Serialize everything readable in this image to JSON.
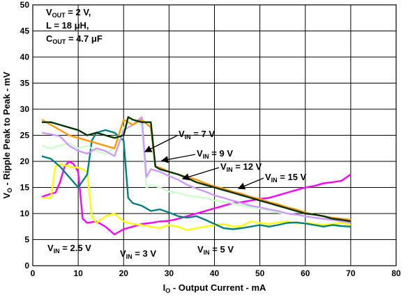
{
  "chart_data": {
    "type": "line",
    "xlabel": {
      "main": "I",
      "sub": "O",
      "rest": " - Output Current - mA"
    },
    "ylabel": {
      "main": "V",
      "sub": "O",
      "rest": " - Ripple Peak to Peak - mV"
    },
    "xlim": [
      0,
      80
    ],
    "ylim": [
      0,
      50
    ],
    "xticks": [
      "0",
      "10",
      "20",
      "30",
      "40",
      "50",
      "60",
      "70",
      "80"
    ],
    "yticks": [
      "0",
      "5",
      "10",
      "15",
      "20",
      "25",
      "30",
      "35",
      "40",
      "45",
      "50"
    ],
    "grid": true,
    "conditions": [
      {
        "main": "V",
        "sub": "OUT",
        "rest": " = 2 V,"
      },
      {
        "main": "L = 18 μH,",
        "sub": "",
        "rest": ""
      },
      {
        "main": "C",
        "sub": "OUT",
        "rest": " = 4.7 μF"
      }
    ],
    "series": [
      {
        "name": "V_IN = 2.5 V",
        "color": "#ff00ff",
        "label": {
          "main": "V",
          "sub": "IN",
          "rest": " = 2.5 V"
        },
        "x": [
          2,
          4,
          5,
          6,
          7,
          8,
          9,
          10,
          11,
          12,
          14,
          16,
          18,
          20,
          22,
          24,
          26,
          28,
          30,
          32,
          34,
          36,
          38,
          40,
          42,
          44,
          46,
          48,
          50,
          52,
          54,
          56,
          58,
          60,
          62,
          64,
          66,
          68,
          70
        ],
        "y": [
          13.2,
          13.8,
          14,
          16,
          19,
          20,
          19.5,
          18,
          9,
          8.2,
          8.5,
          7.5,
          6,
          7,
          7.5,
          8,
          8.2,
          8.5,
          8.6,
          9,
          9.5,
          10,
          10.5,
          11,
          11.5,
          12,
          12.2,
          12.5,
          12.8,
          13,
          13.5,
          14,
          14.5,
          15,
          15.3,
          15.8,
          16,
          16.3,
          17.5
        ]
      },
      {
        "name": "V_IN = 3 V",
        "color": "#ffff00",
        "label": {
          "main": "V",
          "sub": "IN",
          "rest": " = 3 V"
        },
        "x": [
          2,
          4,
          5,
          6,
          8,
          10,
          11,
          12,
          13,
          14,
          16,
          18,
          20,
          22,
          24,
          26,
          28,
          30,
          32,
          34,
          36,
          38,
          40,
          42,
          44,
          46,
          48,
          50,
          52,
          54,
          56,
          58,
          60,
          62,
          64,
          66,
          68,
          70
        ],
        "y": [
          13,
          13,
          19,
          19.5,
          19,
          18.8,
          18.5,
          18,
          9.5,
          8.2,
          9.5,
          10,
          8.5,
          8,
          7.8,
          7.5,
          7.2,
          7.8,
          7.5,
          6.8,
          7.2,
          7.5,
          7.8,
          8,
          7.5,
          7.6,
          8.5,
          8.2,
          8,
          8.3,
          8.5,
          8.1,
          8.2,
          8,
          7.8,
          8,
          8.2,
          7.8
        ]
      },
      {
        "name": "V_IN = 5 V",
        "color": "#008080",
        "label": {
          "main": "V",
          "sub": "IN",
          "rest": " = 5 V"
        },
        "x": [
          2,
          4,
          6,
          8,
          10,
          12,
          13,
          14,
          16,
          18,
          20,
          21,
          22,
          24,
          26,
          28,
          30,
          32,
          34,
          36,
          38,
          40,
          42,
          44,
          46,
          48,
          50,
          52,
          54,
          56,
          58,
          60,
          62,
          64,
          66,
          68,
          70
        ],
        "y": [
          21,
          20.5,
          19,
          17,
          15,
          17.5,
          24,
          25.5,
          26,
          25.5,
          24,
          13,
          12,
          11.5,
          10.5,
          10.8,
          10.2,
          9.5,
          9.2,
          9.5,
          8.8,
          8,
          7.2,
          7,
          7.2,
          7.5,
          7.8,
          7.5,
          7.8,
          8.2,
          8.3,
          8.1,
          7.8,
          7.5,
          7.8,
          7.6,
          7.5
        ]
      },
      {
        "name": "V_IN = 7 V",
        "color": "#ccffcc",
        "label": {
          "main": "V",
          "sub": "IN",
          "rest": " = 7 V"
        },
        "x": [
          2,
          4,
          6,
          8,
          10,
          12,
          14,
          16,
          18,
          20,
          22,
          24,
          25,
          26,
          28,
          30,
          32,
          34,
          36,
          38,
          40,
          42,
          44,
          46,
          48,
          50,
          52,
          54,
          56,
          58,
          60,
          62,
          64,
          66,
          68,
          70
        ],
        "y": [
          23,
          22.5,
          23,
          23.5,
          22.5,
          23,
          22,
          21.5,
          22.5,
          26.5,
          28,
          27,
          15,
          15.5,
          15,
          14.2,
          14,
          13.5,
          13.2,
          13,
          12.5,
          12.3,
          12,
          11.5,
          11.2,
          11,
          10.5,
          10.2,
          10,
          9.8,
          9.5,
          9.3,
          9,
          8.8,
          8.5,
          8.4
        ]
      },
      {
        "name": "V_IN = 9 V",
        "color": "#cc99ff",
        "label": {
          "main": "V",
          "sub": "IN",
          "rest": " = 9 V"
        },
        "x": [
          2,
          4,
          6,
          8,
          10,
          12,
          14,
          16,
          18,
          20,
          22,
          24,
          25,
          26,
          28,
          30,
          32,
          34,
          36,
          38,
          40,
          42,
          44,
          46,
          48,
          50,
          52,
          54,
          56,
          58,
          60,
          62,
          64,
          66,
          68,
          70
        ],
        "y": [
          25.5,
          25.2,
          24.8,
          23,
          22,
          21.5,
          22.5,
          22,
          21,
          26,
          27,
          28.5,
          17,
          18.5,
          18,
          17.2,
          16.5,
          15.5,
          14.8,
          14.2,
          13.5,
          13,
          12.5,
          12,
          11.5,
          11.2,
          10.8,
          10.5,
          10,
          9.8,
          9.5,
          9.2,
          9,
          8.8,
          8.5,
          8.2
        ]
      },
      {
        "name": "V_IN = 12 V",
        "color": "#ff9900",
        "label": {
          "main": "V",
          "sub": "IN",
          "rest": " = 12 V"
        },
        "x": [
          2,
          4,
          6,
          8,
          10,
          12,
          14,
          16,
          18,
          20,
          22,
          24,
          26,
          27,
          28,
          30,
          32,
          34,
          36,
          38,
          40,
          42,
          44,
          46,
          48,
          50,
          52,
          54,
          56,
          58,
          60,
          62,
          64,
          66,
          68,
          70
        ],
        "y": [
          28,
          27,
          26,
          25,
          24.5,
          24,
          23.5,
          23,
          22.5,
          28,
          27,
          28,
          26.5,
          19,
          18.8,
          18,
          17.5,
          17,
          16.5,
          15.8,
          15.2,
          14.8,
          14.2,
          13.8,
          13.2,
          12.8,
          12.2,
          11.8,
          11.2,
          10.8,
          10.2,
          9.8,
          9.5,
          9.2,
          9,
          8.8
        ]
      },
      {
        "name": "V_IN = 15 V",
        "color": "#003300",
        "label": {
          "main": "V",
          "sub": "IN",
          "rest": " = 15 V"
        },
        "x": [
          2,
          4,
          6,
          8,
          10,
          12,
          14,
          16,
          18,
          20,
          21,
          22,
          24,
          26,
          27,
          28,
          30,
          32,
          34,
          36,
          38,
          40,
          42,
          44,
          46,
          48,
          50,
          52,
          54,
          56,
          58,
          60,
          62,
          64,
          66,
          68,
          70
        ],
        "y": [
          27.5,
          27.5,
          27,
          26.5,
          26,
          25,
          25.5,
          25,
          24.5,
          25,
          28.5,
          28,
          27.5,
          27.5,
          19,
          18.5,
          18,
          17.5,
          16.8,
          16,
          15.5,
          15,
          14.5,
          14,
          13.5,
          13,
          12.5,
          12,
          11.5,
          11,
          10.5,
          10,
          9.8,
          9.5,
          9,
          8.8,
          8.5
        ]
      }
    ]
  }
}
